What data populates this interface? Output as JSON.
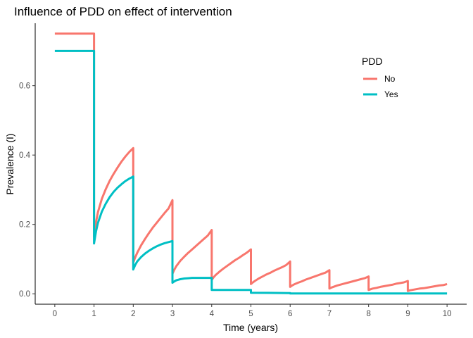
{
  "chart_data": {
    "type": "line",
    "title": "Influence of PDD on effect of intervention",
    "xlabel": "Time (years)",
    "ylabel": "Prevalence (I)",
    "xlim": [
      -0.5,
      10.5
    ],
    "ylim": [
      -0.03,
      0.78
    ],
    "x_ticks": [
      "0",
      "1",
      "2",
      "3",
      "4",
      "5",
      "6",
      "7",
      "8",
      "9",
      "10"
    ],
    "x_tick_values": [
      0,
      1,
      2,
      3,
      4,
      5,
      6,
      7,
      8,
      9,
      10
    ],
    "y_ticks": [
      "0.0",
      "0.2",
      "0.4",
      "0.6"
    ],
    "y_tick_values": [
      0.0,
      0.2,
      0.4,
      0.6
    ],
    "grid": false,
    "legend_position": "top-right",
    "legend_title": "PDD",
    "series": [
      {
        "name": "No",
        "color": "#F8766D",
        "points": [
          [
            0,
            0.75
          ],
          [
            1,
            0.75
          ],
          [
            1,
            0.165
          ],
          [
            1.05,
            0.207
          ],
          [
            1.1,
            0.236
          ],
          [
            1.2,
            0.274
          ],
          [
            1.3,
            0.302
          ],
          [
            1.4,
            0.326
          ],
          [
            1.5,
            0.346
          ],
          [
            1.6,
            0.364
          ],
          [
            1.7,
            0.381
          ],
          [
            1.8,
            0.396
          ],
          [
            1.9,
            0.409
          ],
          [
            2,
            0.42
          ],
          [
            2,
            0.09
          ],
          [
            2.05,
            0.105
          ],
          [
            2.1,
            0.118
          ],
          [
            2.2,
            0.14
          ],
          [
            2.3,
            0.158
          ],
          [
            2.4,
            0.175
          ],
          [
            2.5,
            0.191
          ],
          [
            2.6,
            0.205
          ],
          [
            2.7,
            0.219
          ],
          [
            2.8,
            0.233
          ],
          [
            2.9,
            0.246
          ],
          [
            3,
            0.27
          ],
          [
            3,
            0.058
          ],
          [
            3.05,
            0.07
          ],
          [
            3.1,
            0.08
          ],
          [
            3.2,
            0.095
          ],
          [
            3.3,
            0.107
          ],
          [
            3.4,
            0.118
          ],
          [
            3.5,
            0.128
          ],
          [
            3.6,
            0.138
          ],
          [
            3.7,
            0.148
          ],
          [
            3.8,
            0.158
          ],
          [
            3.9,
            0.168
          ],
          [
            4,
            0.184
          ],
          [
            4,
            0.04
          ],
          [
            4.05,
            0.048
          ],
          [
            4.1,
            0.054
          ],
          [
            4.2,
            0.064
          ],
          [
            4.3,
            0.073
          ],
          [
            4.4,
            0.081
          ],
          [
            4.5,
            0.089
          ],
          [
            4.6,
            0.097
          ],
          [
            4.7,
            0.104
          ],
          [
            4.8,
            0.112
          ],
          [
            4.9,
            0.119
          ],
          [
            5,
            0.128
          ],
          [
            5,
            0.028
          ],
          [
            5.05,
            0.033
          ],
          [
            5.1,
            0.037
          ],
          [
            5.2,
            0.044
          ],
          [
            5.3,
            0.05
          ],
          [
            5.4,
            0.056
          ],
          [
            5.5,
            0.061
          ],
          [
            5.6,
            0.067
          ],
          [
            5.7,
            0.072
          ],
          [
            5.8,
            0.077
          ],
          [
            5.9,
            0.083
          ],
          [
            6,
            0.093
          ],
          [
            6,
            0.02
          ],
          [
            6.05,
            0.024
          ],
          [
            6.1,
            0.027
          ],
          [
            6.2,
            0.032
          ],
          [
            6.3,
            0.036
          ],
          [
            6.4,
            0.041
          ],
          [
            6.5,
            0.045
          ],
          [
            6.6,
            0.049
          ],
          [
            6.7,
            0.053
          ],
          [
            6.8,
            0.057
          ],
          [
            6.9,
            0.061
          ],
          [
            7,
            0.068
          ],
          [
            7,
            0.015
          ],
          [
            7.05,
            0.018
          ],
          [
            7.1,
            0.02
          ],
          [
            7.2,
            0.024
          ],
          [
            7.3,
            0.027
          ],
          [
            7.4,
            0.03
          ],
          [
            7.5,
            0.033
          ],
          [
            7.6,
            0.036
          ],
          [
            7.7,
            0.039
          ],
          [
            7.8,
            0.042
          ],
          [
            7.9,
            0.045
          ],
          [
            8,
            0.05
          ],
          [
            8,
            0.011
          ],
          [
            8.05,
            0.013
          ],
          [
            8.1,
            0.015
          ],
          [
            8.2,
            0.017
          ],
          [
            8.3,
            0.02
          ],
          [
            8.4,
            0.022
          ],
          [
            8.5,
            0.024
          ],
          [
            8.6,
            0.026
          ],
          [
            8.7,
            0.029
          ],
          [
            8.8,
            0.031
          ],
          [
            8.9,
            0.033
          ],
          [
            9,
            0.037
          ],
          [
            9,
            0.008
          ],
          [
            9.05,
            0.01
          ],
          [
            9.1,
            0.011
          ],
          [
            9.2,
            0.013
          ],
          [
            9.3,
            0.015
          ],
          [
            9.4,
            0.016
          ],
          [
            9.5,
            0.018
          ],
          [
            9.6,
            0.02
          ],
          [
            9.7,
            0.022
          ],
          [
            9.8,
            0.024
          ],
          [
            9.9,
            0.025
          ],
          [
            10,
            0.028
          ]
        ]
      },
      {
        "name": "Yes",
        "color": "#00BFC4",
        "points": [
          [
            0,
            0.7
          ],
          [
            1,
            0.7
          ],
          [
            1,
            0.145
          ],
          [
            1.05,
            0.18
          ],
          [
            1.1,
            0.205
          ],
          [
            1.2,
            0.237
          ],
          [
            1.3,
            0.26
          ],
          [
            1.4,
            0.279
          ],
          [
            1.5,
            0.294
          ],
          [
            1.6,
            0.306
          ],
          [
            1.7,
            0.316
          ],
          [
            1.8,
            0.325
          ],
          [
            1.9,
            0.332
          ],
          [
            2,
            0.338
          ],
          [
            2,
            0.07
          ],
          [
            2.05,
            0.083
          ],
          [
            2.1,
            0.093
          ],
          [
            2.2,
            0.106
          ],
          [
            2.3,
            0.116
          ],
          [
            2.4,
            0.124
          ],
          [
            2.5,
            0.131
          ],
          [
            2.6,
            0.137
          ],
          [
            2.7,
            0.142
          ],
          [
            2.8,
            0.146
          ],
          [
            2.9,
            0.149
          ],
          [
            3,
            0.152
          ],
          [
            3,
            0.032
          ],
          [
            3.05,
            0.036
          ],
          [
            3.1,
            0.039
          ],
          [
            3.2,
            0.042
          ],
          [
            3.3,
            0.044
          ],
          [
            3.4,
            0.045
          ],
          [
            3.5,
            0.046
          ],
          [
            3.6,
            0.046
          ],
          [
            3.7,
            0.046
          ],
          [
            3.8,
            0.046
          ],
          [
            3.9,
            0.046
          ],
          [
            4,
            0.046
          ],
          [
            4,
            0.011
          ],
          [
            5,
            0.011
          ],
          [
            5,
            0.003
          ],
          [
            6,
            0.002
          ],
          [
            6,
            0.001
          ],
          [
            10,
            0.001
          ]
        ]
      }
    ]
  }
}
